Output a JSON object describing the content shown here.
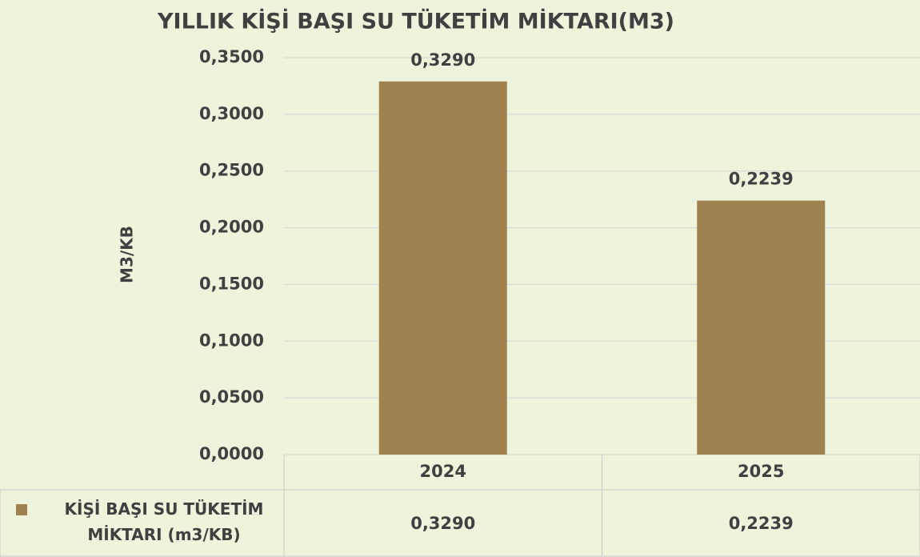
{
  "chart_data": {
    "type": "bar",
    "title": "YILLIK KİŞİ BAŞI SU TÜKETİM MİKTARI(M3)",
    "y_label": "M3/KB",
    "categories": [
      "2024",
      "2025"
    ],
    "series": [
      {
        "name": "KİŞİ BAŞI SU TÜKETİM MİKTARI (m3/KB)",
        "color": "#a08150",
        "values": [
          0.329,
          0.2239
        ],
        "value_labels": [
          "0,3290",
          "0,2239"
        ]
      }
    ],
    "ylim": [
      0,
      0.35
    ],
    "yticks": [
      {
        "value": 0,
        "label": "0,0000"
      },
      {
        "value": 0.05,
        "label": "0,0500"
      },
      {
        "value": 0.1,
        "label": "0,1000"
      },
      {
        "value": 0.15,
        "label": "0,1500"
      },
      {
        "value": 0.2,
        "label": "0,2000"
      },
      {
        "value": 0.25,
        "label": "0,2500"
      },
      {
        "value": 0.3,
        "label": "0,3000"
      },
      {
        "value": 0.35,
        "label": "0,3500"
      }
    ],
    "grid": true,
    "data_table": true
  }
}
